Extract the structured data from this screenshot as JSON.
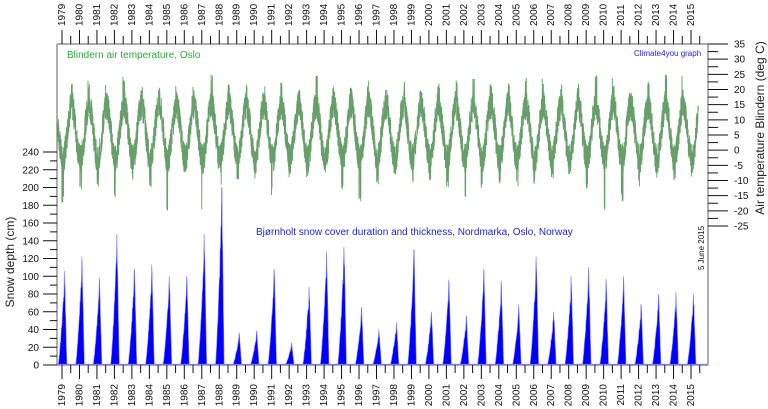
{
  "chart_data": [
    {
      "type": "line",
      "title": "Blindern air temperature, Oslo",
      "ylabel": "Air temperature Blindern (deg C)",
      "yaxis_side": "right",
      "ylim": [
        -25,
        35
      ],
      "yticks": [
        35,
        30,
        25,
        20,
        15,
        10,
        5,
        0,
        -5,
        -10,
        -15,
        -20,
        -25
      ],
      "color": "#5f9a62",
      "description": "Daily air temperature with strong annual cycle: summer peaks ~20-25 deg C, winter lows ~-10 to -20 deg C",
      "series": [
        {
          "name": "Blindern air temperature",
          "x": [
            1979,
            1980,
            1981,
            1982,
            1983,
            1984,
            1985,
            1986,
            1987,
            1988,
            1989,
            1990,
            1991,
            1992,
            1993,
            1994,
            1995,
            1996,
            1997,
            1998,
            1999,
            2000,
            2001,
            2002,
            2003,
            2004,
            2005,
            2006,
            2007,
            2008,
            2009,
            2010,
            2011,
            2012,
            2013,
            2014,
            2015
          ],
          "summer_max": [
            22,
            23,
            22,
            25,
            24,
            21,
            22,
            22,
            20,
            25,
            22,
            22,
            22,
            23,
            21,
            25,
            22,
            21,
            24,
            20,
            23,
            20,
            22,
            23,
            24,
            22,
            23,
            24,
            23,
            22,
            22,
            25,
            22,
            20,
            23,
            25,
            15
          ],
          "winter_min": [
            -18,
            -14,
            -12,
            -16,
            -12,
            -12,
            -20,
            -17,
            -20,
            -13,
            -10,
            -10,
            -15,
            -10,
            -10,
            -12,
            -14,
            -17,
            -12,
            -10,
            -12,
            -10,
            -13,
            -16,
            -13,
            -12,
            -13,
            -12,
            -10,
            -8,
            -13,
            -20,
            -17,
            -12,
            -10,
            -10,
            -9
          ]
        }
      ],
      "annotations": [
        "Climate4you graph"
      ]
    },
    {
      "type": "area",
      "title": "Bjørnholt snow cover duration and thickness, Nordmarka, Oslo, Norway",
      "ylabel": "Snow depth (cm)",
      "yaxis_side": "left",
      "ylim": [
        0,
        240
      ],
      "yticks": [
        0,
        20,
        40,
        60,
        80,
        100,
        120,
        140,
        160,
        180,
        200,
        220,
        240
      ],
      "color": "#0000ff",
      "series": [
        {
          "name": "Snow depth",
          "winter_of_year": [
            1979,
            1980,
            1981,
            1982,
            1983,
            1984,
            1985,
            1986,
            1987,
            1988,
            1989,
            1990,
            1991,
            1992,
            1993,
            1994,
            1995,
            1996,
            1997,
            1998,
            1999,
            2000,
            2001,
            2002,
            2003,
            2004,
            2005,
            2006,
            2007,
            2008,
            2009,
            2010,
            2011,
            2012,
            2013,
            2014,
            2015
          ],
          "peak_cm": [
            106,
            122,
            98,
            148,
            108,
            113,
            100,
            100,
            148,
            200,
            36,
            38,
            108,
            25,
            88,
            128,
            133,
            65,
            40,
            48,
            130,
            60,
            96,
            55,
            108,
            95,
            68,
            122,
            60,
            100,
            110,
            97,
            100,
            68,
            80,
            82,
            80
          ]
        }
      ]
    }
  ],
  "xaxis": {
    "label": "",
    "years": [
      "1979",
      "1980",
      "1981",
      "1982",
      "1983",
      "1984",
      "1985",
      "1986",
      "1987",
      "1988",
      "1989",
      "1990",
      "1991",
      "1992",
      "1993",
      "1994",
      "1995",
      "1996",
      "1997",
      "1998",
      "1999",
      "2000",
      "2001",
      "2002",
      "2003",
      "2004",
      "2005",
      "2006",
      "2007",
      "2008",
      "2009",
      "2010",
      "2011",
      "2012",
      "2013",
      "2014",
      "2015"
    ],
    "xlim": [
      1978.7,
      2015.9
    ]
  },
  "labels": {
    "temp_title": "Blindern air temperature, Oslo",
    "snow_title": "Bjørnholt snow cover duration and thickness, Nordmarka, Oslo, Norway",
    "credit": "Climate4you graph",
    "date": "5 June 2015",
    "left_axis": "Snow depth (cm)",
    "right_axis": "Air temperature Blindern (deg C)"
  },
  "colors": {
    "temperature": "#5f9a62",
    "snow": "#0000ff",
    "snow_light": "#7777ff",
    "axis": "#7a7a7a",
    "tick": "#111111"
  }
}
